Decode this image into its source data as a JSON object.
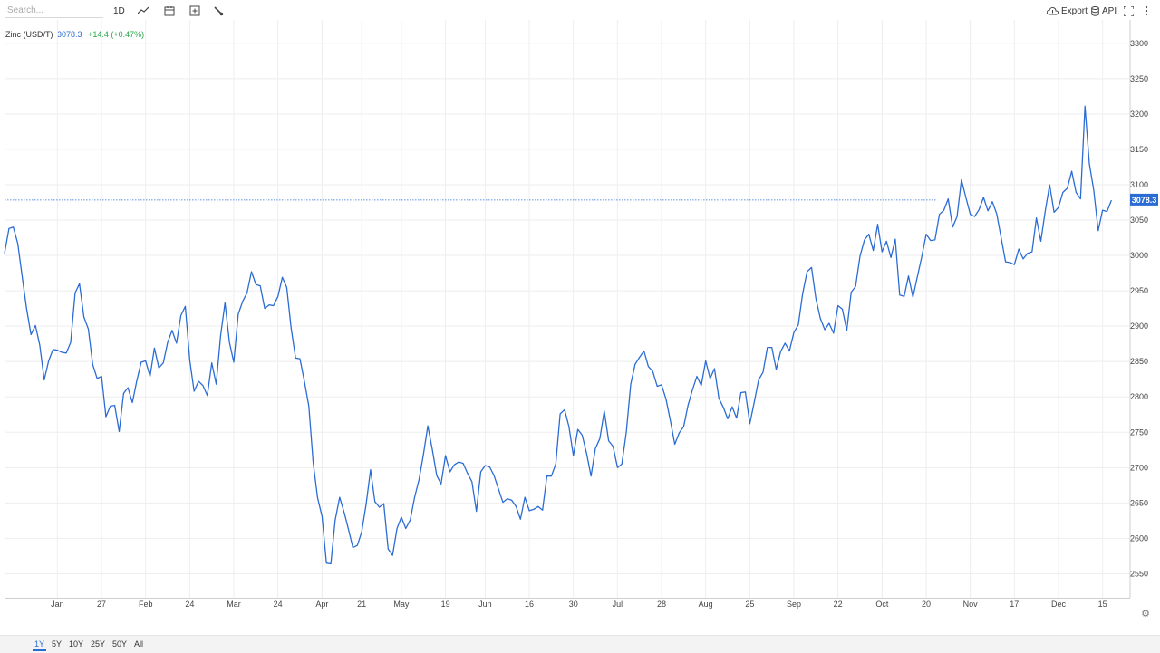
{
  "toolbar": {
    "search_placeholder": "Search...",
    "interval_label": "1D",
    "export_label": "Export",
    "api_label": "API"
  },
  "legend": {
    "name": "Zinc (USD/T)",
    "price": "3078.3",
    "change": "+14.4 (+0.47%)",
    "price_color": "#2b6cd4",
    "change_color": "#2aa54a"
  },
  "ranges": [
    "1Y",
    "5Y",
    "10Y",
    "25Y",
    "50Y",
    "All"
  ],
  "active_range": "1Y",
  "colors": {
    "line": "#2b6cd4",
    "grid": "#eeeeee"
  },
  "chart_data": {
    "type": "line",
    "title": "",
    "xlabel": "",
    "ylabel": "",
    "ylim": [
      2516,
      3333
    ],
    "grid": true,
    "last_value": 3078.3,
    "last_value_label": "3078.3",
    "yticks": [
      2550,
      2600,
      2650,
      2700,
      2750,
      2800,
      2850,
      2900,
      2950,
      3000,
      3050,
      3100,
      3150,
      3200,
      3250,
      3300
    ],
    "xticks": [
      {
        "label": "Jan",
        "index": 12
      },
      {
        "label": "27",
        "index": 22
      },
      {
        "label": "Feb",
        "index": 32
      },
      {
        "label": "24",
        "index": 42
      },
      {
        "label": "Mar",
        "index": 52
      },
      {
        "label": "24",
        "index": 62
      },
      {
        "label": "Apr",
        "index": 72
      },
      {
        "label": "21",
        "index": 81
      },
      {
        "label": "May",
        "index": 90
      },
      {
        "label": "19",
        "index": 100
      },
      {
        "label": "Jun",
        "index": 109
      },
      {
        "label": "16",
        "index": 119
      },
      {
        "label": "30",
        "index": 129
      },
      {
        "label": "Jul",
        "index": 139
      },
      {
        "label": "28",
        "index": 149
      },
      {
        "label": "Aug",
        "index": 159
      },
      {
        "label": "25",
        "index": 169
      },
      {
        "label": "Sep",
        "index": 179
      },
      {
        "label": "22",
        "index": 189
      },
      {
        "label": "Oct",
        "index": 199
      },
      {
        "label": "20",
        "index": 209
      },
      {
        "label": "Nov",
        "index": 219
      },
      {
        "label": "17",
        "index": 229
      },
      {
        "label": "Dec",
        "index": 239
      },
      {
        "label": "15",
        "index": 249
      }
    ],
    "series": [
      {
        "values": [
          3003,
          3038,
          3040,
          3017,
          2970,
          2925,
          2888,
          2901,
          2873,
          2824,
          2851,
          2867,
          2866,
          2863,
          2862,
          2877,
          2947,
          2960,
          2913,
          2896,
          2846,
          2826,
          2829,
          2772,
          2787,
          2788,
          2751,
          2805,
          2813,
          2792,
          2823,
          2849,
          2851,
          2829,
          2869,
          2841,
          2848,
          2877,
          2894,
          2876,
          2915,
          2928,
          2852,
          2808,
          2822,
          2816,
          2802,
          2848,
          2818,
          2886,
          2933,
          2877,
          2849,
          2917,
          2935,
          2947,
          2977,
          2959,
          2957,
          2925,
          2930,
          2929,
          2942,
          2969,
          2955,
          2897,
          2855,
          2854,
          2822,
          2787,
          2707,
          2657,
          2631,
          2565,
          2564,
          2626,
          2658,
          2637,
          2613,
          2587,
          2590,
          2609,
          2648,
          2697,
          2652,
          2644,
          2649,
          2585,
          2576,
          2614,
          2630,
          2614,
          2626,
          2658,
          2683,
          2719,
          2759,
          2726,
          2689,
          2677,
          2717,
          2694,
          2704,
          2708,
          2706,
          2692,
          2680,
          2638,
          2694,
          2703,
          2701,
          2689,
          2670,
          2651,
          2656,
          2654,
          2645,
          2627,
          2658,
          2639,
          2641,
          2645,
          2640,
          2688,
          2688,
          2705,
          2776,
          2782,
          2758,
          2717,
          2754,
          2746,
          2720,
          2688,
          2727,
          2741,
          2780,
          2738,
          2730,
          2700,
          2705,
          2750,
          2818,
          2846,
          2856,
          2865,
          2843,
          2836,
          2815,
          2817,
          2797,
          2766,
          2733,
          2749,
          2758,
          2788,
          2810,
          2829,
          2816,
          2851,
          2826,
          2840,
          2798,
          2785,
          2769,
          2786,
          2770,
          2806,
          2807,
          2762,
          2792,
          2824,
          2835,
          2870,
          2870,
          2839,
          2864,
          2876,
          2865,
          2891,
          2902,
          2946,
          2977,
          2983,
          2939,
          2911,
          2895,
          2904,
          2890,
          2929,
          2924,
          2894,
          2948,
          2956,
          2999,
          3022,
          3030,
          3007,
          3044,
          3005,
          3020,
          2997,
          3023,
          2944,
          2942,
          2971,
          2941,
          2970,
          2998,
          3030,
          3021,
          3022,
          3058,
          3064,
          3080,
          3040,
          3055,
          3107,
          3082,
          3058,
          3055,
          3065,
          3082,
          3063,
          3076,
          3059,
          3025,
          2991,
          2990,
          2987,
          3009,
          2995,
          3003,
          3005,
          3053,
          3020,
          3063,
          3100,
          3061,
          3068,
          3089,
          3095,
          3119,
          3089,
          3080,
          3211,
          3130,
          3092,
          3035,
          3064,
          3062,
          3078
        ]
      }
    ]
  }
}
